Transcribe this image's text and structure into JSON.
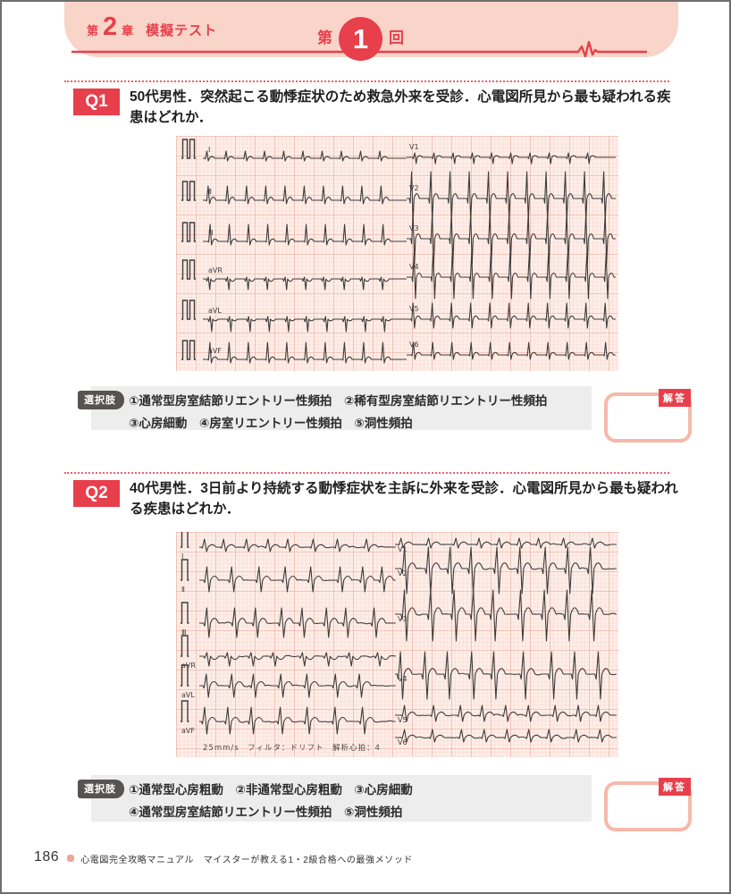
{
  "header": {
    "chapter_prefix": "第",
    "chapter_number": "2",
    "chapter_suffix": "章",
    "chapter_title": "模擬テスト",
    "round_prefix": "第",
    "round_number": "1",
    "round_suffix": "回"
  },
  "colors": {
    "accent_red": "#e73f4c",
    "band_pink": "#f9d4c8",
    "ecg_paper_bg": "#fdeee8",
    "ecg_grid_minor": "#f7c9bd",
    "ecg_grid_major": "#eb9f8f",
    "ecg_trace": "#3c3c3c",
    "choices_tag_gray": "#575352",
    "answer_border_pink": "#f6b9a9"
  },
  "q1": {
    "badge": "Q1",
    "question": "50代男性．突然起こる動悸症状のため救急外来を受診．心電図所見から最も疑われる疾患はどれか．",
    "choices_label": "選択肢",
    "choices_line1": "①通常型房室結節リエントリー性頻拍　②稀有型房室結節リエントリー性頻拍",
    "choices_line2": "③心房細動　④房室リエントリー性頻拍　⑤洞性頻拍",
    "answer_label": "解答",
    "ecg": {
      "limb_leads": [
        "Ⅰ",
        "Ⅱ",
        "Ⅲ",
        "aVR",
        "aVL",
        "aVF"
      ],
      "chest_leads": [
        "V1",
        "V2",
        "V3",
        "V4",
        "V5",
        "V6"
      ]
    }
  },
  "q2": {
    "badge": "Q2",
    "question": "40代男性．3日前より持続する動悸症状を主訴に外来を受診．心電図所見から最も疑われる疾患はどれか．",
    "choices_label": "選択肢",
    "choices_line1": "①通常型心房粗動　②非通常型心房粗動　③心房細動",
    "choices_line2": "④通常型房室結節リエントリー性頻拍　⑤洞性頻拍",
    "answer_label": "解答",
    "ecg": {
      "limb_leads": [
        "Ⅰ",
        "Ⅱ",
        "Ⅲ",
        "aVR",
        "aVL",
        "aVF"
      ],
      "chest_leads": [
        "V1",
        "V2",
        "V3",
        "V4",
        "V5",
        "V6"
      ],
      "meta": "25mm/s　フィルタ：ドリフト　解析心拍：4"
    }
  },
  "footer": {
    "page_number": "186",
    "book_title": "心電図完全攻略マニュアル　マイスターが教える1・2級合格への最強メソッド"
  }
}
